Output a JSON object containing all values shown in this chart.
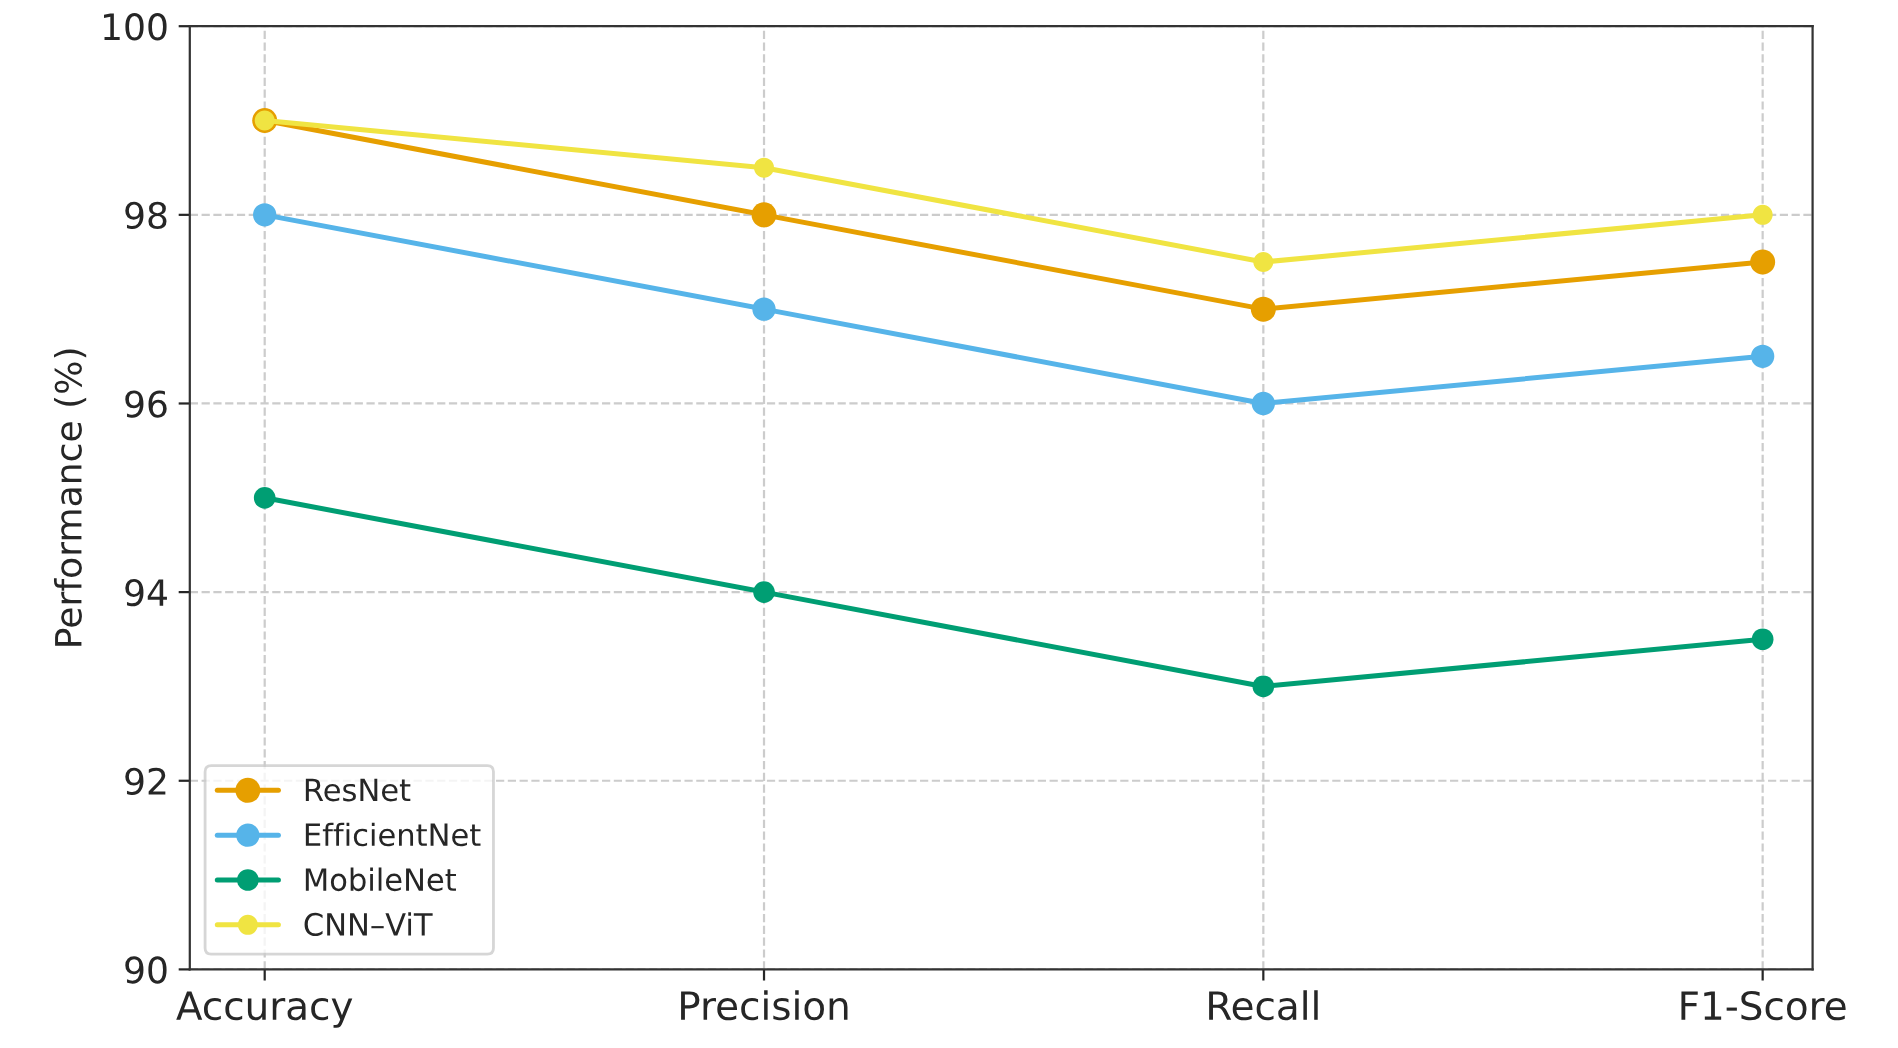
{
  "chart_data": {
    "type": "line",
    "ylabel": "Performance (%)",
    "categories": [
      "Accuracy",
      "Precision",
      "Recall",
      "F1-Score"
    ],
    "series": [
      {
        "name": "ResNet",
        "color": "#e69f00",
        "values": [
          99,
          98,
          97,
          97.5
        ]
      },
      {
        "name": "EfficientNet",
        "color": "#56b4e9",
        "values": [
          98,
          97,
          96,
          96.5
        ]
      },
      {
        "name": "MobileNet",
        "color": "#009e73",
        "values": [
          95,
          94,
          93,
          93.5
        ]
      },
      {
        "name": "CNN–ViT",
        "color": "#f0e442",
        "values": [
          99,
          98.5,
          97.5,
          98
        ]
      }
    ],
    "ylim": [
      90,
      100
    ],
    "yticks": [
      90,
      92,
      94,
      96,
      98,
      100
    ],
    "grid": true,
    "legend": "bottom left",
    "marker": "circle",
    "line_style": "solid"
  }
}
